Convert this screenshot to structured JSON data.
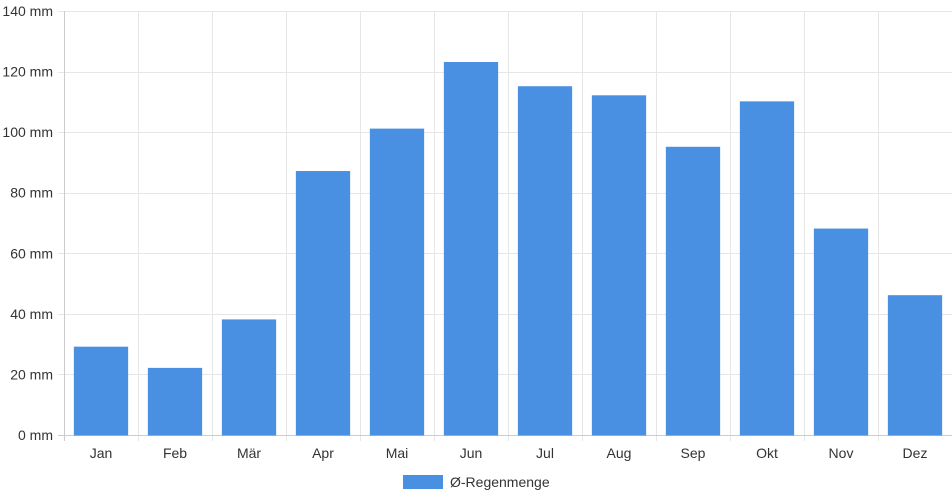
{
  "chart_data": {
    "type": "bar",
    "categories": [
      "Jan",
      "Feb",
      "Mär",
      "Apr",
      "Mai",
      "Jun",
      "Jul",
      "Aug",
      "Sep",
      "Okt",
      "Nov",
      "Dez"
    ],
    "series": [
      {
        "name": "Ø-Regenmenge",
        "values": [
          29,
          22,
          38,
          87,
          101,
          123,
          115,
          112,
          95,
          110,
          68,
          46
        ]
      }
    ],
    "unit": "mm",
    "yticks": [
      0,
      20,
      40,
      60,
      80,
      100,
      120,
      140
    ],
    "ylim": [
      0,
      140
    ],
    "grid": true,
    "legend_position": "bottom",
    "bar_color": "#4a90e2",
    "grid_color": "#e6e6e6"
  }
}
